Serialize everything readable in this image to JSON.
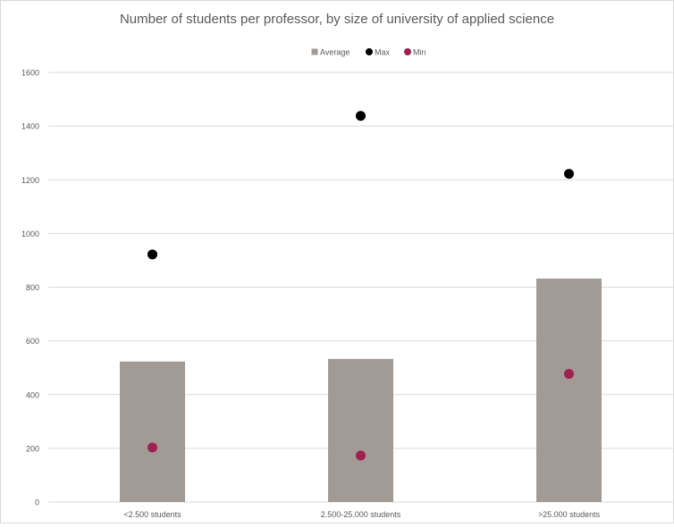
{
  "chart_data": {
    "type": "bar",
    "title": "Number of students per professor, by size of university of applied science",
    "categories": [
      "<2.500 students",
      "2.500-25.000 students",
      ">25.000 students"
    ],
    "series": [
      {
        "name": "Average",
        "kind": "bar",
        "color": "#a29a94",
        "values": [
          523,
          533,
          832
        ]
      },
      {
        "name": "Max",
        "kind": "scatter",
        "color": "#000000",
        "values": [
          922,
          1438,
          1222
        ]
      },
      {
        "name": "Min",
        "kind": "scatter",
        "color": "#a0204f",
        "values": [
          203,
          173,
          477
        ]
      }
    ],
    "xlabel": "",
    "ylabel": "",
    "ylim": [
      0,
      1600
    ],
    "yticks": [
      "0",
      "200",
      "400",
      "600",
      "800",
      "1000",
      "1200",
      "1400",
      "1600"
    ],
    "grid": true,
    "legend_position": "top-center"
  }
}
